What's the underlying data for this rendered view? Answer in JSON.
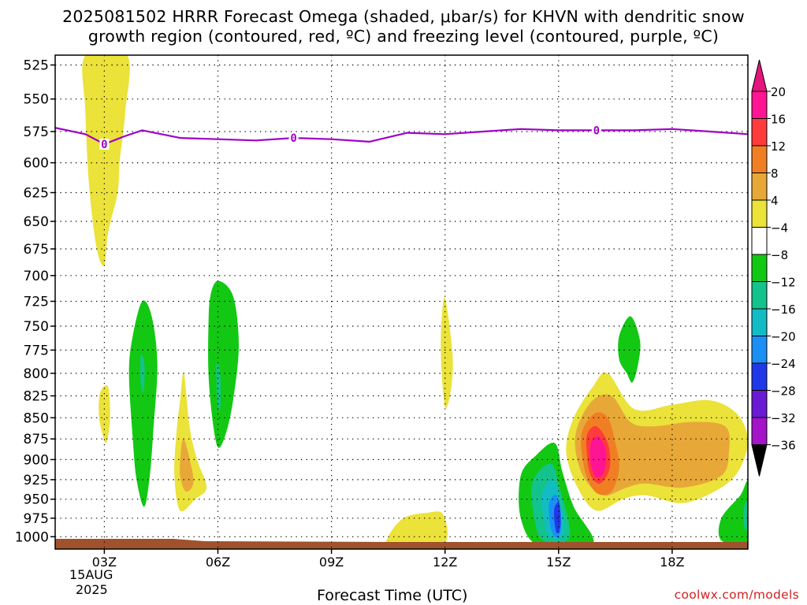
{
  "header": {
    "title_line1": "2025081502 HRRR Forecast Omega (shaded, μbar/s) for KHVN with dendritic snow",
    "title_line2": "growth region (contoured, red, ºC) and freezing level (contoured, purple, ºC)"
  },
  "footer": {
    "xlabel": "Forecast Time (UTC)",
    "credit": "coolwx.com/models",
    "date_day": "15AUG",
    "date_year": "2025"
  },
  "chart_data": {
    "type": "heatmap",
    "title": "2025081502 HRRR Forecast Omega (shaded, μbar/s) for KHVN with dendritic snow growth region (contoured, red, ºC) and freezing level (contoured, purple, ºC)",
    "xlabel": "Forecast Time (UTC)",
    "ylabel": "",
    "x_range_hours": [
      1.7,
      20.0
    ],
    "x_ticks": [
      {
        "hour": 3,
        "label": "03Z"
      },
      {
        "hour": 6,
        "label": "06Z"
      },
      {
        "hour": 9,
        "label": "09Z"
      },
      {
        "hour": 12,
        "label": "12Z"
      },
      {
        "hour": 15,
        "label": "15Z"
      },
      {
        "hour": 18,
        "label": "18Z"
      }
    ],
    "y_ticks": [
      525,
      550,
      575,
      600,
      625,
      650,
      675,
      700,
      725,
      750,
      775,
      800,
      825,
      850,
      875,
      900,
      925,
      950,
      975,
      1000
    ],
    "y_range_hpa": [
      518,
      1017
    ],
    "y_scale": "log-pressure",
    "grid": true,
    "colorbar": {
      "levels": [
        20,
        16,
        12,
        8,
        4,
        -4,
        -8,
        -12,
        -16,
        -20,
        -24,
        -28,
        -32,
        -36
      ],
      "colors": [
        "#ff1493",
        "#ff3b3b",
        "#f07f23",
        "#e8a838",
        "#ebe23a",
        "#ffffff",
        "#13c813",
        "#13c38c",
        "#12bcc4",
        "#1a8ff5",
        "#2039e8",
        "#6a1ad4",
        "#a313c8",
        "#a8a8a8",
        "#000000"
      ],
      "top_color": "#e6147d",
      "bottom_color": "#000000"
    },
    "freezing_level": {
      "label": "0",
      "color": "#a000c8",
      "points": [
        [
          1.7,
          572
        ],
        [
          2.5,
          577
        ],
        [
          3.0,
          585
        ],
        [
          3.5,
          579
        ],
        [
          4.0,
          574
        ],
        [
          5.0,
          580
        ],
        [
          6.0,
          581
        ],
        [
          7.0,
          582
        ],
        [
          8.0,
          580
        ],
        [
          9.0,
          581
        ],
        [
          10.0,
          583
        ],
        [
          11.0,
          576
        ],
        [
          12.0,
          577
        ],
        [
          13.0,
          575
        ],
        [
          14.0,
          573
        ],
        [
          15.0,
          574
        ],
        [
          16.0,
          574
        ],
        [
          17.0,
          574
        ],
        [
          18.0,
          573
        ],
        [
          19.0,
          575
        ],
        [
          20.0,
          577
        ]
      ],
      "label_hours": [
        3.0,
        8.0,
        16.0
      ]
    },
    "ground_color": "#a0522d",
    "regions": [
      {
        "kind": "positive",
        "level": 4,
        "color": "#ebe23a",
        "points": [
          [
            2.5,
            518
          ],
          [
            3.6,
            518
          ],
          [
            3.55,
            560
          ],
          [
            3.4,
            600
          ],
          [
            3.35,
            625
          ],
          [
            3.1,
            660
          ],
          [
            3.0,
            690
          ],
          [
            2.8,
            675
          ],
          [
            2.6,
            620
          ],
          [
            2.5,
            560
          ]
        ]
      },
      {
        "kind": "positive",
        "level": 4,
        "color": "#ebe23a",
        "points": [
          [
            2.9,
            820
          ],
          [
            3.1,
            815
          ],
          [
            3.15,
            850
          ],
          [
            3.05,
            880
          ],
          [
            2.9,
            860
          ],
          [
            2.85,
            840
          ]
        ]
      },
      {
        "kind": "negative",
        "level": -4,
        "color": "#13c813",
        "points": [
          [
            4.0,
            725
          ],
          [
            4.25,
            740
          ],
          [
            4.4,
            790
          ],
          [
            4.3,
            860
          ],
          [
            4.2,
            920
          ],
          [
            4.05,
            960
          ],
          [
            3.85,
            925
          ],
          [
            3.75,
            875
          ],
          [
            3.65,
            800
          ],
          [
            3.75,
            760
          ]
        ]
      },
      {
        "kind": "negative",
        "level": -8,
        "color": "#13c38c",
        "points": [
          [
            3.96,
            780
          ],
          [
            4.06,
            790
          ],
          [
            4.04,
            820
          ],
          [
            3.96,
            810
          ]
        ]
      },
      {
        "kind": "positive",
        "level": 4,
        "color": "#ebe23a",
        "points": [
          [
            5.1,
            800
          ],
          [
            5.25,
            860
          ],
          [
            5.45,
            900
          ],
          [
            5.7,
            935
          ],
          [
            5.4,
            950
          ],
          [
            5.0,
            965
          ],
          [
            4.85,
            920
          ],
          [
            4.9,
            870
          ],
          [
            5.0,
            830
          ]
        ]
      },
      {
        "kind": "positive",
        "level": 8,
        "color": "#e8a838",
        "points": [
          [
            5.1,
            875
          ],
          [
            5.28,
            905
          ],
          [
            5.35,
            930
          ],
          [
            5.15,
            940
          ],
          [
            5.0,
            920
          ],
          [
            5.02,
            890
          ]
        ]
      },
      {
        "kind": "negative",
        "level": -4,
        "color": "#13c813",
        "points": [
          [
            5.8,
            720
          ],
          [
            6.0,
            705
          ],
          [
            6.4,
            720
          ],
          [
            6.55,
            770
          ],
          [
            6.4,
            830
          ],
          [
            6.2,
            870
          ],
          [
            6.0,
            885
          ],
          [
            5.85,
            850
          ],
          [
            5.75,
            800
          ],
          [
            5.75,
            750
          ]
        ]
      },
      {
        "kind": "negative",
        "level": -8,
        "color": "#13c38c",
        "points": [
          [
            5.96,
            790
          ],
          [
            6.06,
            800
          ],
          [
            6.06,
            840
          ],
          [
            5.98,
            830
          ]
        ]
      },
      {
        "kind": "positive",
        "level": 4,
        "color": "#ebe23a",
        "points": [
          [
            12.0,
            722
          ],
          [
            12.2,
            780
          ],
          [
            12.15,
            820
          ],
          [
            12.0,
            838
          ],
          [
            11.9,
            790
          ],
          [
            11.9,
            750
          ]
        ]
      },
      {
        "kind": "positive",
        "level": 4,
        "color": "#ebe23a",
        "points": [
          [
            10.5,
            1000
          ],
          [
            10.9,
            975
          ],
          [
            11.5,
            968
          ],
          [
            11.95,
            970
          ],
          [
            11.95,
            1010
          ],
          [
            10.6,
            1012
          ]
        ]
      },
      {
        "kind": "negative",
        "level": -4,
        "color": "#13c813",
        "points": [
          [
            14.0,
            920
          ],
          [
            14.4,
            895
          ],
          [
            14.9,
            880
          ],
          [
            15.1,
            915
          ],
          [
            15.4,
            960
          ],
          [
            15.9,
            1010
          ],
          [
            14.5,
            1013
          ],
          [
            14.0,
            975
          ]
        ]
      },
      {
        "kind": "negative",
        "level": -8,
        "color": "#13c38c",
        "points": [
          [
            14.3,
            930
          ],
          [
            14.8,
            905
          ],
          [
            15.05,
            940
          ],
          [
            15.3,
            990
          ],
          [
            15.15,
            1007
          ],
          [
            14.6,
            1005
          ],
          [
            14.4,
            985
          ]
        ]
      },
      {
        "kind": "negative",
        "level": -12,
        "color": "#12bcc4",
        "points": [
          [
            14.55,
            945
          ],
          [
            14.85,
            925
          ],
          [
            15.1,
            965
          ],
          [
            15.15,
            995
          ],
          [
            14.95,
            1003
          ],
          [
            14.7,
            995
          ],
          [
            14.6,
            970
          ]
        ]
      },
      {
        "kind": "negative",
        "level": -16,
        "color": "#1a8ff5",
        "points": [
          [
            14.75,
            955
          ],
          [
            14.95,
            945
          ],
          [
            15.07,
            975
          ],
          [
            15.03,
            997
          ],
          [
            14.9,
            1000
          ],
          [
            14.78,
            985
          ]
        ]
      },
      {
        "kind": "negative",
        "level": -20,
        "color": "#2039e8",
        "points": [
          [
            14.9,
            960
          ],
          [
            15.02,
            955
          ],
          [
            15.05,
            985
          ],
          [
            14.95,
            995
          ],
          [
            14.88,
            975
          ]
        ]
      },
      {
        "kind": "positive",
        "level": 4,
        "color": "#ebe23a",
        "points": [
          [
            15.4,
            850
          ],
          [
            15.9,
            815
          ],
          [
            16.3,
            800
          ],
          [
            17.0,
            840
          ],
          [
            18.0,
            835
          ],
          [
            19.0,
            830
          ],
          [
            19.7,
            845
          ],
          [
            20.0,
            875
          ],
          [
            19.8,
            910
          ],
          [
            19.3,
            935
          ],
          [
            18.3,
            955
          ],
          [
            17.3,
            945
          ],
          [
            16.7,
            950
          ],
          [
            16.0,
            965
          ],
          [
            15.5,
            935
          ],
          [
            15.2,
            890
          ]
        ]
      },
      {
        "kind": "positive",
        "level": 8,
        "color": "#e8a838",
        "points": [
          [
            15.5,
            860
          ],
          [
            15.9,
            830
          ],
          [
            16.4,
            825
          ],
          [
            16.9,
            855
          ],
          [
            17.5,
            860
          ],
          [
            18.5,
            855
          ],
          [
            19.4,
            860
          ],
          [
            19.5,
            890
          ],
          [
            19.3,
            920
          ],
          [
            18.3,
            935
          ],
          [
            17.3,
            930
          ],
          [
            16.8,
            935
          ],
          [
            16.2,
            945
          ],
          [
            15.7,
            925
          ],
          [
            15.45,
            890
          ]
        ]
      },
      {
        "kind": "positive",
        "level": 12,
        "color": "#f07f23",
        "points": [
          [
            15.6,
            870
          ],
          [
            15.95,
            845
          ],
          [
            16.3,
            850
          ],
          [
            16.5,
            880
          ],
          [
            16.6,
            910
          ],
          [
            16.4,
            940
          ],
          [
            16.0,
            942
          ],
          [
            15.7,
            915
          ]
        ]
      },
      {
        "kind": "positive",
        "level": 16,
        "color": "#ff3b3b",
        "points": [
          [
            15.75,
            870
          ],
          [
            16.0,
            860
          ],
          [
            16.3,
            880
          ],
          [
            16.35,
            910
          ],
          [
            16.1,
            930
          ],
          [
            15.85,
            920
          ],
          [
            15.75,
            895
          ]
        ]
      },
      {
        "kind": "positive",
        "level": 20,
        "color": "#ff1493",
        "points": [
          [
            15.85,
            880
          ],
          [
            16.05,
            872
          ],
          [
            16.25,
            890
          ],
          [
            16.2,
            915
          ],
          [
            16.0,
            922
          ],
          [
            15.85,
            905
          ]
        ]
      },
      {
        "kind": "negative",
        "level": -4,
        "color": "#13c813",
        "points": [
          [
            16.6,
            760
          ],
          [
            16.9,
            740
          ],
          [
            17.15,
            765
          ],
          [
            17.1,
            790
          ],
          [
            16.95,
            810
          ],
          [
            16.8,
            800
          ],
          [
            16.6,
            785
          ]
        ]
      },
      {
        "kind": "negative",
        "level": -4,
        "color": "#13c813",
        "points": [
          [
            19.3,
            975
          ],
          [
            19.8,
            945
          ],
          [
            20.0,
            930
          ],
          [
            20.0,
            1007
          ],
          [
            19.3,
            1005
          ]
        ]
      },
      {
        "kind": "negative",
        "level": -8,
        "color": "#13c38c",
        "points": [
          [
            19.9,
            960
          ],
          [
            20.0,
            955
          ],
          [
            20.0,
            990
          ],
          [
            19.9,
            985
          ]
        ]
      }
    ]
  }
}
